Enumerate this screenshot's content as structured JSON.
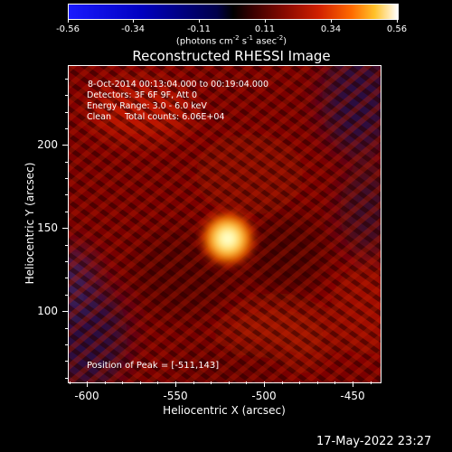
{
  "colorbar": {
    "tick_labels": [
      "-0.56",
      "-0.34",
      "-0.11",
      "0.11",
      "0.34",
      "0.56"
    ],
    "unit_prefix": "(photons cm",
    "unit_sup1": "-2",
    "unit_mid1": " s",
    "unit_sup2": "-1",
    "unit_mid2": " asec",
    "unit_sup3": "-2",
    "unit_suffix": ")"
  },
  "title": "Reconstructed RHESSI Image",
  "info": {
    "time_range": "8-Oct-2014 00:13:04.000 to 00:19:04.000",
    "detectors": "Detectors: 3F 6F 9F, Att 0",
    "energy": "Energy Range: 3.0 - 6.0 keV",
    "clean": "Clean     Total counts: 6.06E+04",
    "peak": "Position of Peak = [-511,143]"
  },
  "x_axis": {
    "title": "Heliocentric X (arcsec)",
    "ticks": [
      "-600",
      "-550",
      "-500",
      "-450"
    ]
  },
  "y_axis": {
    "title": "Heliocentric Y (arcsec)",
    "ticks": [
      "200",
      "150",
      "100"
    ]
  },
  "timestamp": "17-May-2022 23:27",
  "colors": {
    "background": "#000000",
    "foreground": "#ffffff",
    "peak": "#ffffa0",
    "map_base": "#7a0000",
    "negative_region": "#3a1a5a"
  }
}
